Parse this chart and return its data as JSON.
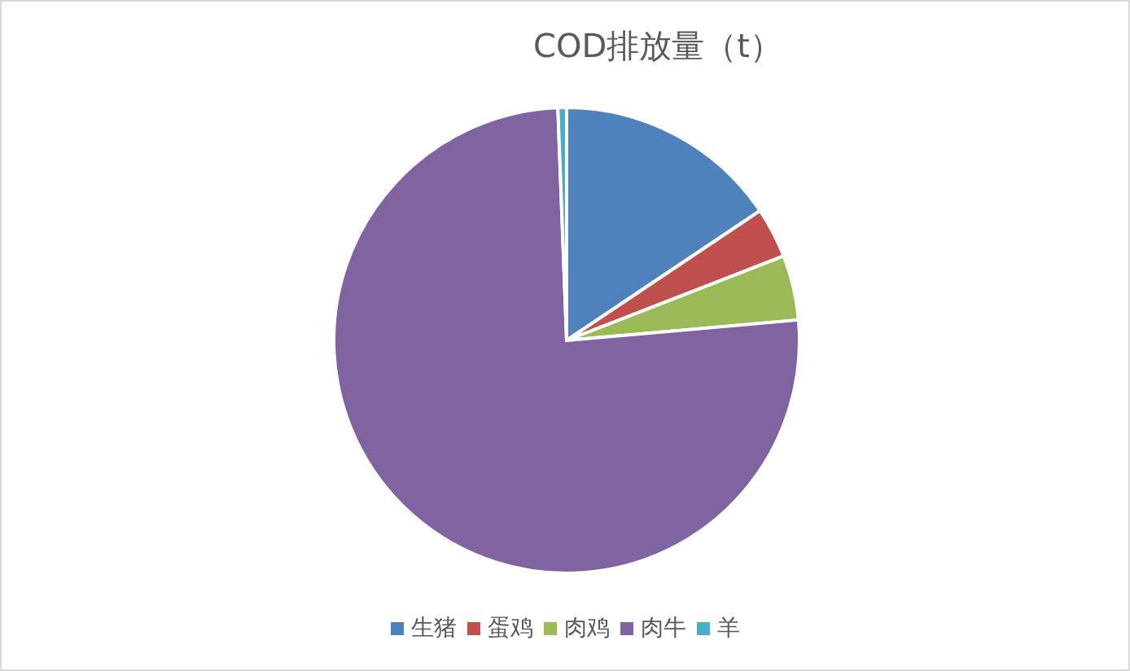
{
  "chart_data": {
    "type": "pie",
    "title": "COD排放量（t）",
    "categories": [
      "生猪",
      "蛋鸡",
      "肉鸡",
      "肉牛",
      "羊"
    ],
    "values": [
      15.6,
      3.5,
      4.5,
      75.8,
      0.6
    ],
    "colors": [
      "#4f81bd",
      "#c0504d",
      "#9bbb59",
      "#8064a2",
      "#4bacc6"
    ],
    "legend": "bottom"
  }
}
